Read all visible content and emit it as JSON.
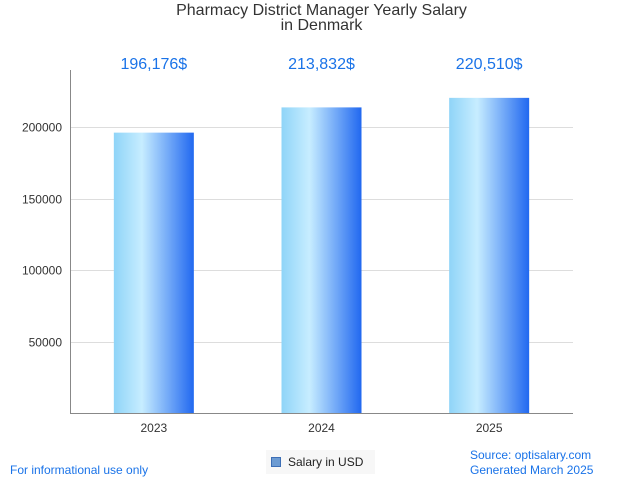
{
  "chart_data": {
    "type": "bar",
    "title_lines": [
      "Pharmacy District Manager Yearly Salary",
      "in Denmark"
    ],
    "categories": [
      "2023",
      "2024",
      "2025"
    ],
    "series": [
      {
        "name": "Salary in USD",
        "values": [
          196176,
          213832,
          220510
        ]
      }
    ],
    "data_labels": [
      "196,176$",
      "213,832$",
      "220,510$"
    ],
    "y_ticks": [
      50000,
      100000,
      150000,
      200000
    ],
    "ylim": [
      0,
      240000
    ],
    "grid": true,
    "legend_position": "bottom-center"
  },
  "colors": {
    "bar_light": "#c7edff",
    "bar_mid_light": "#8fd4f8",
    "bar_dark": "#2168f0",
    "data_label": "#1a73e8",
    "gridline": "#dddddd",
    "axis": "#888888",
    "legend_swatch": "#6c9bd2"
  },
  "footer": {
    "disclaimer": "For informational use only",
    "source": "Source: optisalary.com",
    "generated": "Generated March 2025"
  }
}
